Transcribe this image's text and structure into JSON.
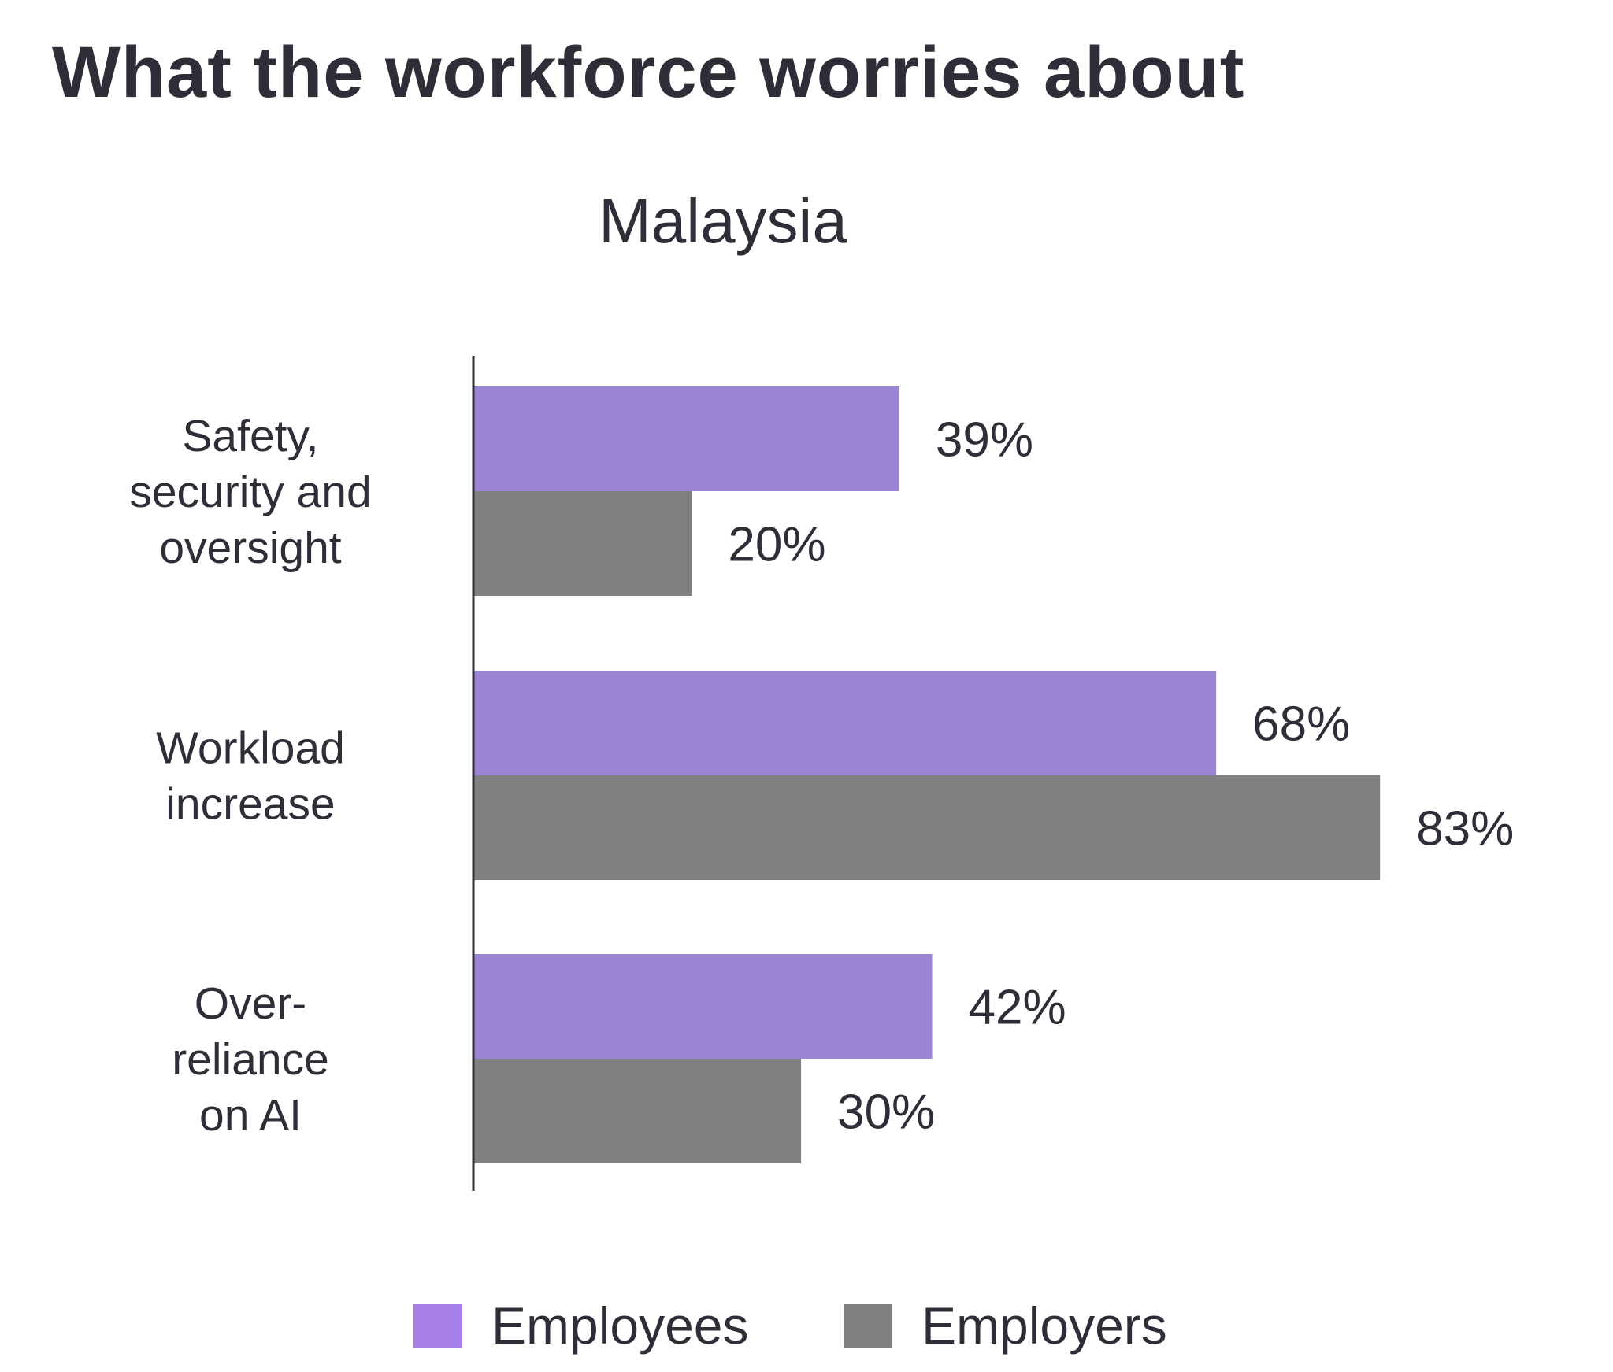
{
  "chart_data": {
    "type": "bar",
    "orientation": "horizontal",
    "title": "What the workforce worries about",
    "subtitle": "Malaysia",
    "categories": [
      "Safety, security and oversight",
      "Workload increase",
      "Over-reliance on AI"
    ],
    "category_lines": [
      [
        "Safety,",
        "security and",
        "oversight"
      ],
      [
        "Workload",
        "increase"
      ],
      [
        "Over-",
        "reliance",
        "on AI"
      ]
    ],
    "series": [
      {
        "name": "Employees",
        "values": [
          39,
          68,
          42
        ],
        "labels": [
          "39%",
          "68%",
          "42%"
        ],
        "color": "#9b84d2",
        "legend_color": "#a77fe8"
      },
      {
        "name": "Employers",
        "values": [
          20,
          83,
          30
        ],
        "labels": [
          "20%",
          "83%",
          "30%"
        ],
        "color": "#808080",
        "legend_color": "#808080"
      }
    ],
    "xlim": [
      0,
      100
    ],
    "grid": false,
    "legend": "bottom",
    "unit": "%"
  }
}
